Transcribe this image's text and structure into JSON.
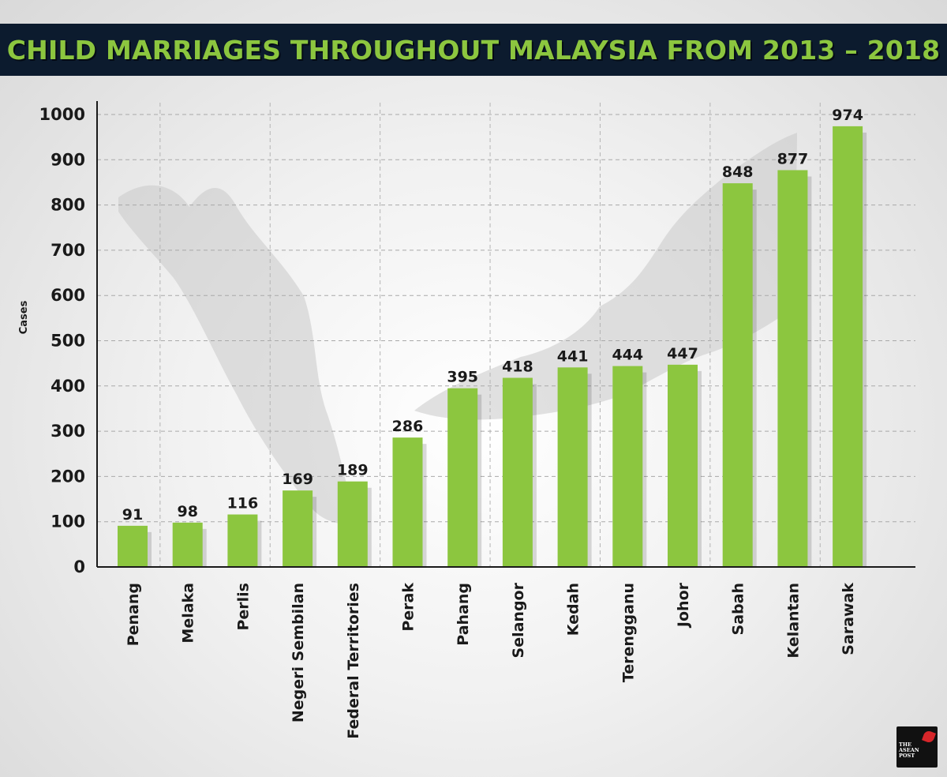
{
  "header": {
    "title": "CHILD MARRIAGES THROUGHOUT MALAYSIA FROM 2013 – 2018"
  },
  "logo": {
    "text": "THE ASEAN POST"
  },
  "colors": {
    "bar": "#8cc63f",
    "title_bar": "#0c1b2e",
    "title_text": "#8cc63f",
    "map_silhouette": "#c8c8c8"
  },
  "chart_data": {
    "type": "bar",
    "title": "CHILD MARRIAGES THROUGHOUT MALAYSIA FROM 2013 – 2018",
    "xlabel": "",
    "ylabel": "Cases",
    "ylim": [
      0,
      1000
    ],
    "yticks": [
      0,
      100,
      200,
      300,
      400,
      500,
      600,
      700,
      800,
      900,
      1000
    ],
    "grid": true,
    "categories": [
      "Penang",
      "Melaka",
      "Perlis",
      "Negeri Sembilan",
      "Federal Territories",
      "Perak",
      "Pahang",
      "Selangor",
      "Kedah",
      "Terengganu",
      "Johor",
      "Sabah",
      "Kelantan",
      "Sarawak"
    ],
    "values": [
      91,
      98,
      116,
      169,
      189,
      286,
      395,
      418,
      441,
      444,
      447,
      848,
      877,
      974
    ],
    "data_labels": [
      "91",
      "98",
      "116",
      "169",
      "189",
      "286",
      "395",
      "418",
      "441",
      "444",
      "447",
      "848",
      "877",
      "974"
    ]
  }
}
